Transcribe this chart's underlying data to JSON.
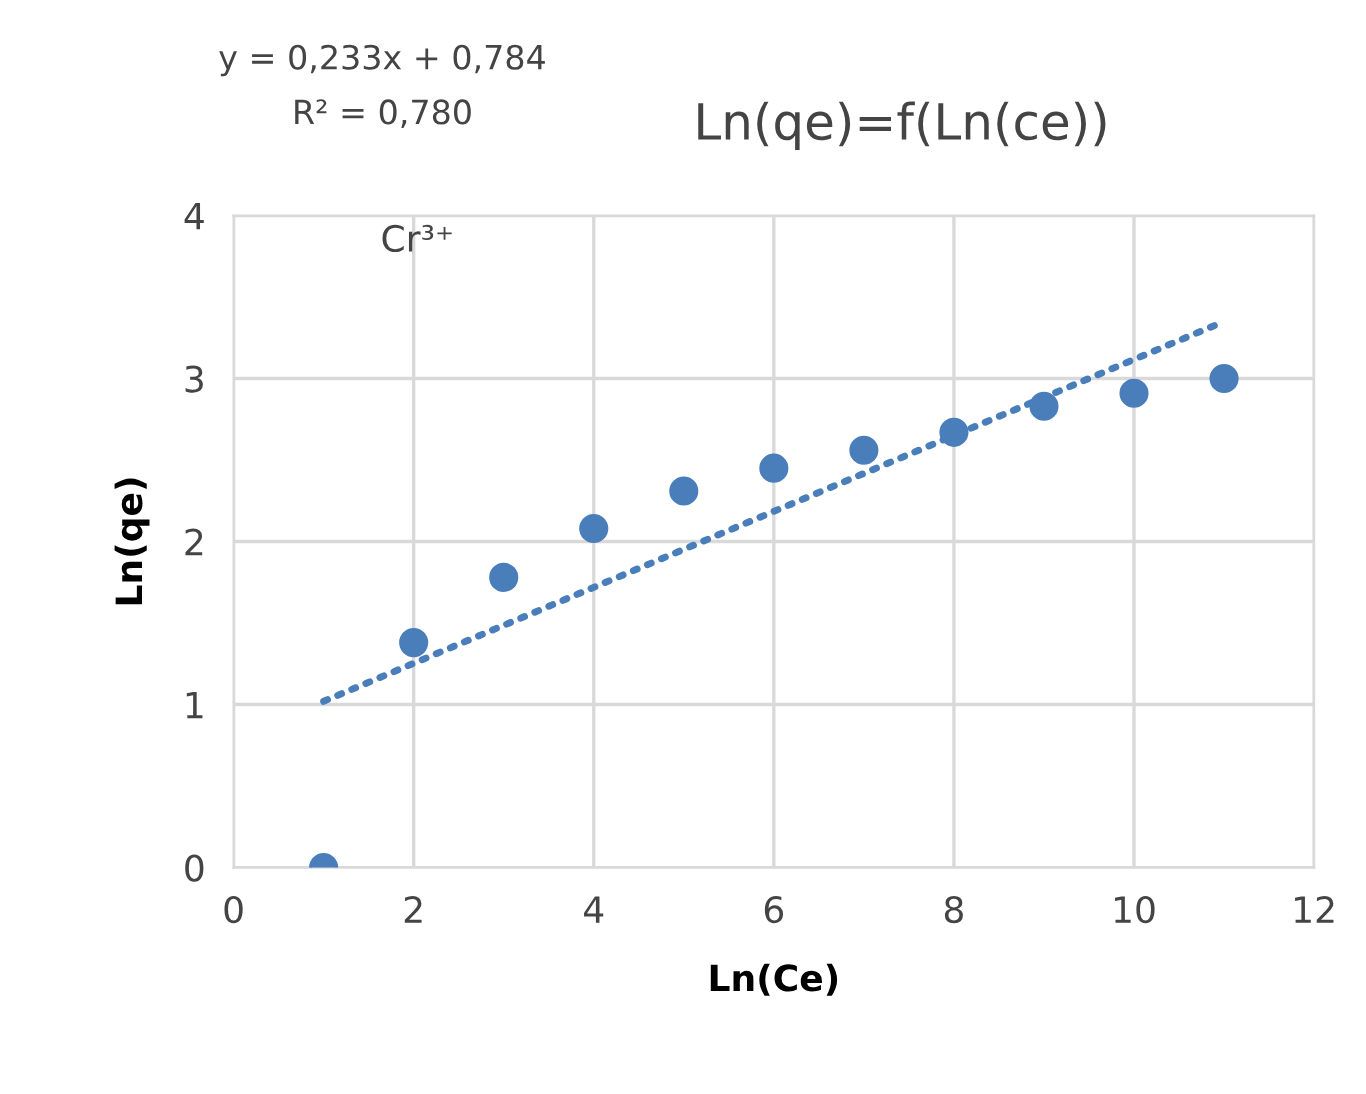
{
  "chart_data": {
    "type": "scatter",
    "title": "Ln(qe)=f(Ln(ce))",
    "xlabel": "Ln(Ce)",
    "ylabel": "Ln(qe)",
    "annotations": [
      "y = 0,233x + 0,784",
      "R² = 0,780",
      "Cr³⁺"
    ],
    "x": [
      1,
      2,
      3,
      4,
      5,
      6,
      7,
      8,
      9,
      10,
      11
    ],
    "series": [
      {
        "color": "#4a7ebb",
        "marker": "circle",
        "values": [
          0,
          1.38,
          1.78,
          2.08,
          2.31,
          2.45,
          2.56,
          2.67,
          2.83,
          2.91,
          3.0
        ]
      },
      {
        "type": "line",
        "color": "#4a7ebb",
        "line_style": "dotted",
        "marker": "none",
        "x": [
          1,
          11
        ],
        "values": [
          1.02,
          3.35
        ]
      }
    ],
    "xlim": [
      0,
      12
    ],
    "xticks": [
      0,
      2,
      4,
      6,
      8,
      10,
      12
    ],
    "ylim": [
      0,
      4
    ],
    "yticks": [
      0,
      1,
      2,
      3,
      4
    ],
    "grid": true,
    "legend": false
  }
}
